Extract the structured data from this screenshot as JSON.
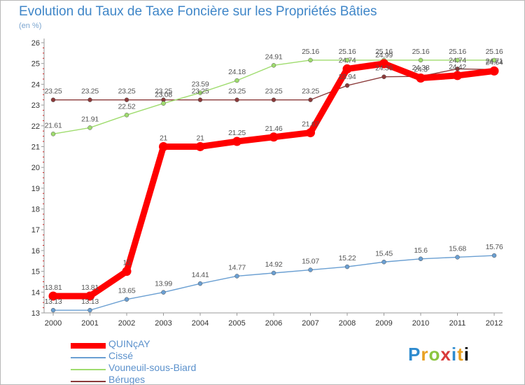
{
  "page": {
    "title": "Evolution du Taux de Taxe Foncière sur les Propriétés Bâties",
    "unit": "(en %)",
    "logo": "Proxiti"
  },
  "chart_data": {
    "type": "line",
    "title": "Evolution du Taux de Taxe Foncière sur les Propriétés Bâties",
    "ylabel": "(en %)",
    "xlabel": "",
    "ylim": [
      13,
      26
    ],
    "yticks": [
      "13",
      "14",
      "15",
      "16",
      "17",
      "18",
      "19",
      "20",
      "21",
      "22",
      "23",
      "24",
      "25",
      "26"
    ],
    "categories": [
      "2000",
      "2001",
      "2002",
      "2003",
      "2004",
      "2005",
      "2006",
      "2007",
      "2008",
      "2009",
      "2010",
      "2011",
      "2012"
    ],
    "grid": false,
    "legend": "bottom-left",
    "series": [
      {
        "name": "QUINçAY",
        "color": "#ff0000",
        "highlight": true,
        "values": [
          13.81,
          13.81,
          15,
          21,
          21,
          21.25,
          21.46,
          21.67,
          24.74,
          24.99,
          24.3,
          24.42,
          24.64
        ],
        "labels": [
          "13.81",
          "13.81",
          "15",
          "21",
          "21",
          "21.25",
          "21.46",
          "21.67",
          "24.74",
          "24.99",
          "24.3",
          "24.42",
          "24.64"
        ]
      },
      {
        "name": "Cissé",
        "color": "#6a9fd2",
        "highlight": false,
        "values": [
          13.13,
          13.13,
          13.65,
          13.99,
          14.41,
          14.77,
          14.92,
          15.07,
          15.22,
          15.45,
          15.6,
          15.68,
          15.76
        ],
        "labels": [
          "13.13",
          "13.13",
          "13.65",
          "13.99",
          "14.41",
          "14.77",
          "14.92",
          "15.07",
          "15.22",
          "15.45",
          "15.6",
          "15.68",
          "15.76"
        ]
      },
      {
        "name": "Vouneuil-sous-Biard",
        "color": "#9fdc6e",
        "highlight": false,
        "values": [
          21.61,
          21.91,
          22.52,
          23.08,
          23.59,
          24.18,
          24.91,
          25.16,
          25.16,
          25.16,
          25.16,
          25.16,
          25.16
        ],
        "labels": [
          "21.61",
          "21.91",
          "22.52",
          "23.08",
          "23.59",
          "24.18",
          "24.91",
          "25.16",
          "25.16",
          "25.16",
          "25.16",
          "25.16",
          "25.16"
        ]
      },
      {
        "name": "Béruges",
        "color": "#8b3a3a",
        "highlight": false,
        "values": [
          23.25,
          23.25,
          23.25,
          23.25,
          23.25,
          23.25,
          23.25,
          23.25,
          23.94,
          24.36,
          24.38,
          24.74,
          24.71
        ],
        "labels": [
          "23.25",
          "23.25",
          "23.25",
          "23.25",
          "23.25",
          "23.25",
          "23.25",
          "23.25",
          "23.94",
          "24.36",
          "24.38",
          "24.74",
          "24.71"
        ]
      }
    ]
  }
}
